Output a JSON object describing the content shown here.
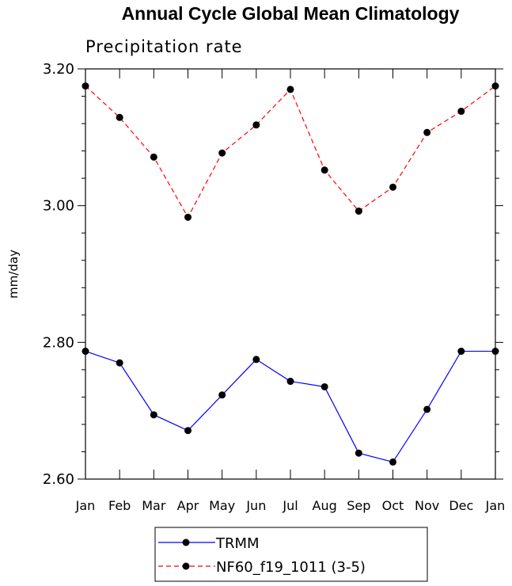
{
  "chart_data": {
    "type": "line",
    "title": "Annual Cycle Global Mean Climatology",
    "subtitle": "Precipitation rate",
    "xlabel": "",
    "ylabel": "mm/day",
    "ylim": [
      2.6,
      3.2
    ],
    "ytick_values": [
      2.6,
      2.8,
      3.0,
      3.2
    ],
    "ytick_labels": [
      "2.60",
      "2.80",
      "3.00",
      "3.20"
    ],
    "categories": [
      "Jan",
      "Feb",
      "Mar",
      "Apr",
      "May",
      "Jun",
      "Jul",
      "Aug",
      "Sep",
      "Oct",
      "Nov",
      "Dec",
      "Jan"
    ],
    "series": [
      {
        "name": "TRMM",
        "color": "#0000ff",
        "dashed": false,
        "values": [
          2.787,
          2.77,
          2.694,
          2.671,
          2.723,
          2.775,
          2.743,
          2.735,
          2.638,
          2.625,
          2.702,
          2.787,
          2.787
        ]
      },
      {
        "name": "NF60_f19_1011 (3-5)",
        "color": "#ff0000",
        "dashed": true,
        "values": [
          3.175,
          3.129,
          3.071,
          2.983,
          3.077,
          3.118,
          3.17,
          3.052,
          2.992,
          3.027,
          3.107,
          3.138,
          3.175
        ]
      }
    ],
    "legend_position": "bottom-center",
    "grid": false
  }
}
